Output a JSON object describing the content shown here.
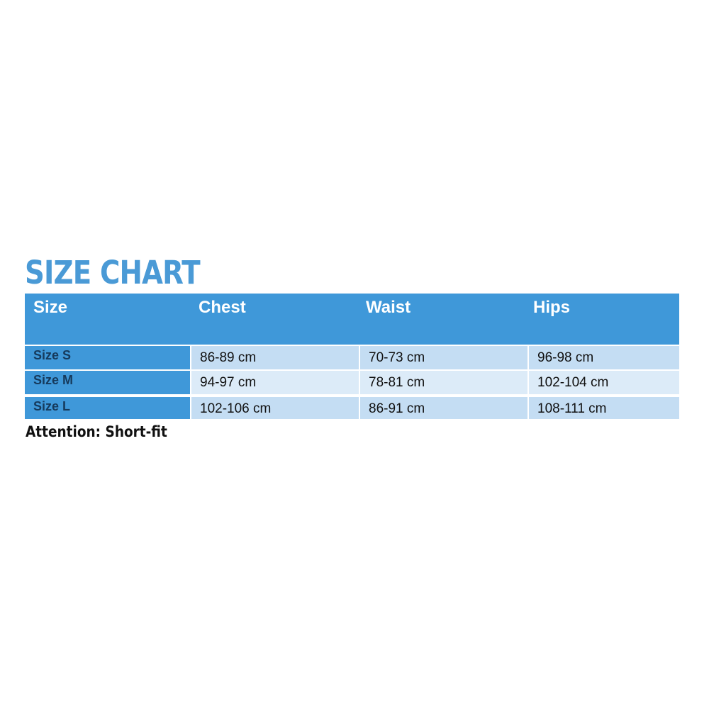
{
  "title": "SIZE CHART",
  "headers": [
    "Size",
    "Chest",
    "Waist",
    "Hips"
  ],
  "rows": [
    [
      "Size S",
      "86-89 cm",
      "70-73 cm",
      "96-98 cm"
    ],
    [
      "Size M",
      "94-97 cm",
      "78-81 cm",
      "102-104 cm"
    ],
    [
      "Size L",
      "102-106 cm",
      "86-91 cm",
      "108-111 cm"
    ]
  ],
  "note": "Attention: Short-fit",
  "colors": {
    "accent": "#3f98d9",
    "title": "#4a9ad6",
    "cell": "#c4ddf3",
    "cell_alt": "#dcebf8"
  }
}
